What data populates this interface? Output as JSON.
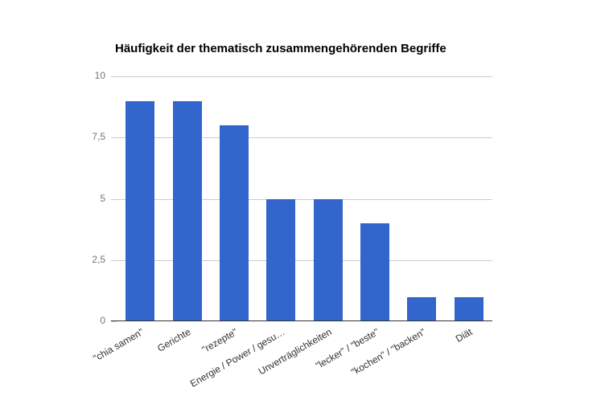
{
  "chart_data": {
    "type": "bar",
    "title": "Häufigkeit der thematisch zusammengehörenden Begriffe",
    "categories": [
      "\"chia samen\"",
      "Gerichte",
      "\"rezepte\"",
      "Energie / Power / gesu…",
      "Unverträglichkeiten",
      "\"lecker\" / \"beste\"",
      "\"kochen\" / \"backen\"",
      "Diät"
    ],
    "values": [
      9,
      9,
      8,
      5,
      5,
      4,
      1,
      1
    ],
    "xlabel": "",
    "ylabel": "",
    "ylim": [
      0,
      10
    ],
    "yticks": [
      {
        "value": 0,
        "label": "0"
      },
      {
        "value": 2.5,
        "label": "2,5"
      },
      {
        "value": 5,
        "label": "5"
      },
      {
        "value": 7.5,
        "label": "7,5"
      },
      {
        "value": 10,
        "label": "10"
      }
    ],
    "grid": true,
    "legend": "none",
    "colors": {
      "bar": "#3366cc",
      "gridline": "#cccccc",
      "axis_line": "#333333",
      "y_label": "#757575",
      "x_label": "#333333",
      "title": "#000000",
      "background": "#ffffff"
    }
  }
}
